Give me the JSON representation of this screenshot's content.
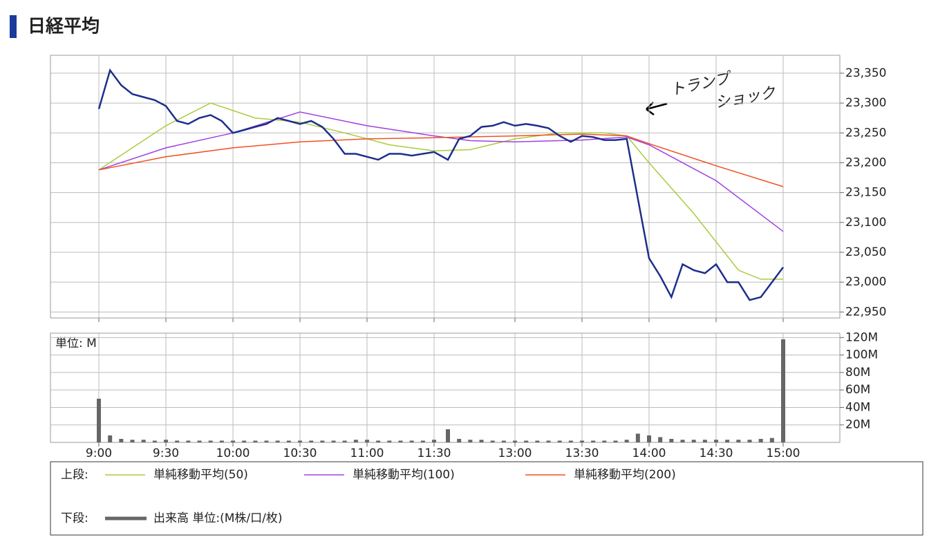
{
  "chart_data": [
    {
      "type": "line",
      "title": "日経平均",
      "x": [
        "9:00",
        "9:05",
        "9:10",
        "9:15",
        "9:20",
        "9:25",
        "9:30",
        "9:35",
        "9:40",
        "9:45",
        "9:50",
        "9:55",
        "10:00",
        "10:05",
        "10:10",
        "10:15",
        "10:20",
        "10:25",
        "10:30",
        "10:35",
        "10:40",
        "10:45",
        "10:50",
        "10:55",
        "11:00",
        "11:05",
        "11:10",
        "11:15",
        "11:20",
        "11:25",
        "11:30",
        "12:30",
        "12:35",
        "12:40",
        "12:45",
        "12:50",
        "12:55",
        "13:00",
        "13:05",
        "13:10",
        "13:15",
        "13:20",
        "13:25",
        "13:30",
        "13:35",
        "13:40",
        "13:45",
        "13:50",
        "13:55",
        "14:00",
        "14:05",
        "14:10",
        "14:15",
        "14:20",
        "14:25",
        "14:30",
        "14:35",
        "14:40",
        "14:45",
        "14:50",
        "14:55",
        "15:00"
      ],
      "values": [
        23290,
        23355,
        23330,
        23315,
        23310,
        23305,
        23295,
        23270,
        23265,
        23275,
        23280,
        23270,
        23250,
        23255,
        23260,
        23265,
        23275,
        23270,
        23265,
        23270,
        23260,
        23240,
        23215,
        23215,
        23210,
        23205,
        23215,
        23215,
        23212,
        23215,
        23218,
        23205,
        23240,
        23245,
        23260,
        23262,
        23268,
        23262,
        23265,
        23262,
        23258,
        23245,
        23235,
        23245,
        23243,
        23238,
        23238,
        23240,
        23140,
        23040,
        23010,
        22975,
        23030,
        23020,
        23015,
        23030,
        23000,
        23000,
        22970,
        22975,
        23000,
        23025
      ],
      "color": "#1c2e8c",
      "legend_label": "上段:",
      "series": [
        {
          "name": "単純移動平均(50)",
          "color": "#a8cc3c",
          "x": [
            "9:00",
            "9:30",
            "9:50",
            "10:10",
            "10:30",
            "10:50",
            "11:10",
            "11:30",
            "12:40",
            "13:00",
            "13:20",
            "13:40",
            "13:50",
            "14:00",
            "14:20",
            "14:40",
            "14:50",
            "15:00"
          ],
          "values": [
            23188,
            23262,
            23300,
            23275,
            23268,
            23250,
            23230,
            23220,
            23222,
            23240,
            23250,
            23250,
            23245,
            23200,
            23115,
            23020,
            23005,
            23005
          ]
        },
        {
          "name": "単純移動平均(100)",
          "color": "#a040e0",
          "x": [
            "9:00",
            "9:30",
            "10:00",
            "10:30",
            "11:00",
            "11:30",
            "12:40",
            "13:00",
            "13:30",
            "13:50",
            "14:00",
            "14:30",
            "15:00"
          ],
          "values": [
            23188,
            23225,
            23250,
            23285,
            23262,
            23245,
            23237,
            23235,
            23238,
            23243,
            23230,
            23170,
            23085
          ]
        },
        {
          "name": "単純移動平均(200)",
          "color": "#f05020",
          "x": [
            "9:00",
            "9:30",
            "10:00",
            "10:30",
            "11:00",
            "11:30",
            "13:00",
            "13:30",
            "13:50",
            "14:00",
            "14:30",
            "15:00"
          ],
          "values": [
            23188,
            23210,
            23225,
            23235,
            23240,
            23242,
            23245,
            23248,
            23245,
            23232,
            23195,
            23160
          ]
        }
      ],
      "ylim": [
        22940,
        23380
      ],
      "yticks": [
        {
          "value": 22950,
          "label": "22,950"
        },
        {
          "value": 23000,
          "label": "23,000"
        },
        {
          "value": 23050,
          "label": "23,050"
        },
        {
          "value": 23100,
          "label": "23,100"
        },
        {
          "value": 23150,
          "label": "23,150"
        },
        {
          "value": 23200,
          "label": "23,200"
        },
        {
          "value": 23250,
          "label": "23,250"
        },
        {
          "value": 23300,
          "label": "23,300"
        },
        {
          "value": 23350,
          "label": "23,350"
        }
      ],
      "xticks": [
        "9:00",
        "9:30",
        "10:00",
        "10:30",
        "11:00",
        "11:30",
        "13:00",
        "13:30",
        "14:00",
        "14:30",
        "15:00"
      ],
      "grid": true,
      "annotation_lines": [
        "トランプ",
        "ショック"
      ]
    },
    {
      "type": "bar",
      "unit_label": "単位: M",
      "legend_label": "下段:",
      "x": [
        "9:00",
        "9:05",
        "9:10",
        "9:15",
        "9:20",
        "9:25",
        "9:30",
        "9:35",
        "9:40",
        "9:45",
        "9:50",
        "9:55",
        "10:00",
        "10:05",
        "10:10",
        "10:15",
        "10:20",
        "10:25",
        "10:30",
        "10:35",
        "10:40",
        "10:45",
        "10:50",
        "10:55",
        "11:00",
        "11:05",
        "11:10",
        "11:15",
        "11:20",
        "11:25",
        "11:30",
        "12:30",
        "12:35",
        "12:40",
        "12:45",
        "12:50",
        "12:55",
        "13:00",
        "13:05",
        "13:10",
        "13:15",
        "13:20",
        "13:25",
        "13:30",
        "13:35",
        "13:40",
        "13:45",
        "13:50",
        "13:55",
        "14:00",
        "14:05",
        "14:10",
        "14:15",
        "14:20",
        "14:25",
        "14:30",
        "14:35",
        "14:40",
        "14:45",
        "14:50",
        "14:55",
        "15:00"
      ],
      "series": [
        {
          "name": "出来高 単位:(M株/口/枚)",
          "color": "#666666",
          "values": [
            50,
            8,
            4,
            3,
            3,
            2,
            3,
            2,
            2,
            2,
            2,
            2,
            2,
            2,
            2,
            2,
            2,
            2,
            2,
            2,
            2,
            2,
            2,
            3,
            3,
            2,
            2,
            2,
            2,
            2,
            3,
            15,
            4,
            3,
            3,
            2,
            2,
            2,
            2,
            2,
            2,
            2,
            2,
            2,
            2,
            2,
            2,
            3,
            10,
            8,
            6,
            4,
            3,
            3,
            3,
            3,
            3,
            3,
            3,
            4,
            5,
            118
          ]
        }
      ],
      "ylim": [
        0,
        125
      ],
      "yticks": [
        {
          "value": 20,
          "label": "20M"
        },
        {
          "value": 40,
          "label": "40M"
        },
        {
          "value": 60,
          "label": "60M"
        },
        {
          "value": 80,
          "label": "80M"
        },
        {
          "value": 100,
          "label": "100M"
        },
        {
          "value": 120,
          "label": "120M"
        }
      ],
      "xticks": [
        "9:00",
        "9:30",
        "10:00",
        "10:30",
        "11:00",
        "11:30",
        "13:00",
        "13:30",
        "14:00",
        "14:30",
        "15:00"
      ],
      "grid": true
    }
  ]
}
